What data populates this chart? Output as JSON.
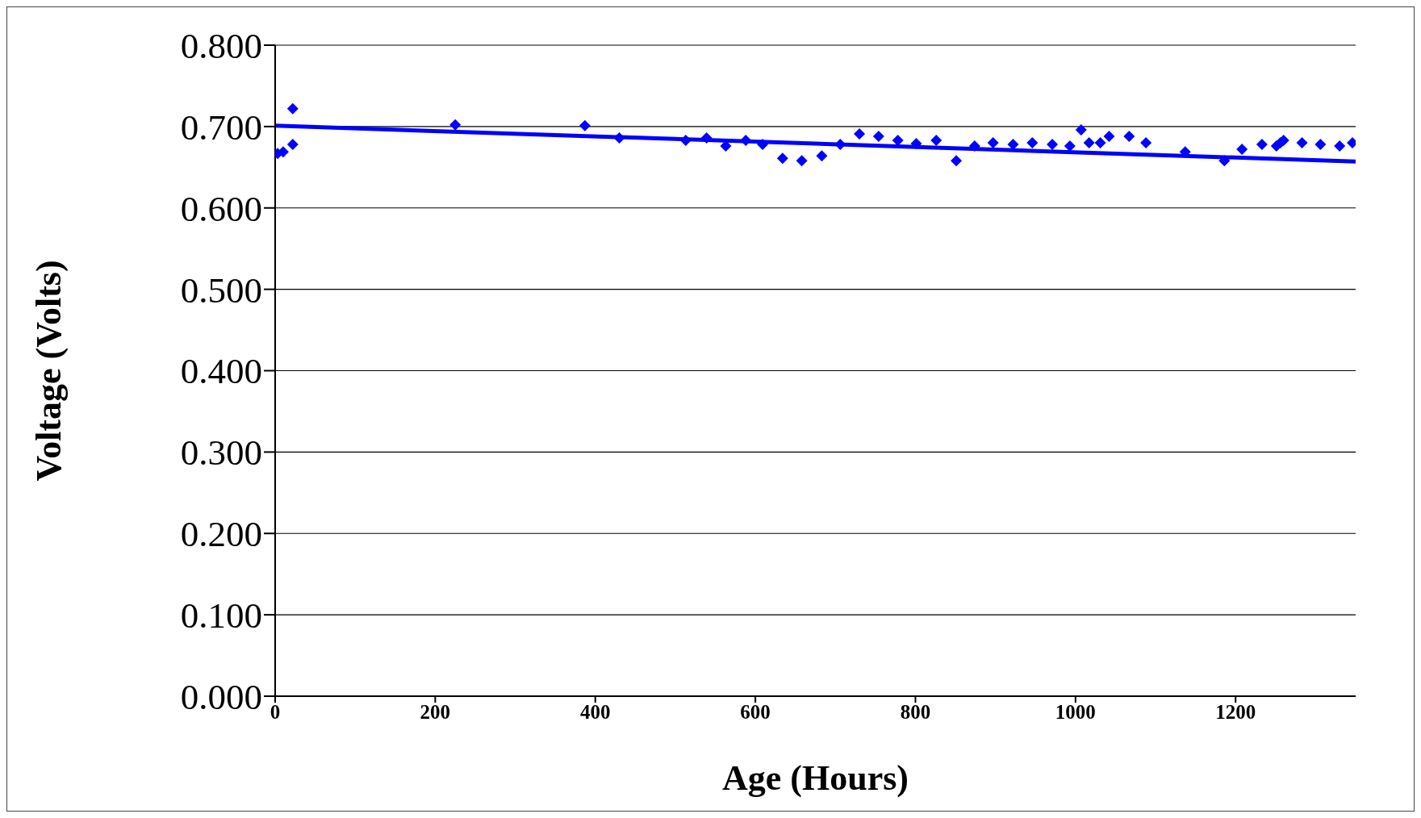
{
  "chart_data": {
    "type": "scatter",
    "xlabel": "Age (Hours)",
    "ylabel": "Voltage (Volts)",
    "xlim": [
      0,
      1350
    ],
    "xticks": [
      0,
      200,
      400,
      600,
      800,
      1000,
      1200
    ],
    "ylim": [
      0,
      0.8
    ],
    "yticks": [
      {
        "value": 0,
        "label": "0.000"
      },
      {
        "value": 0.1,
        "label": "0.100"
      },
      {
        "value": 0.2,
        "label": "0.200"
      },
      {
        "value": 0.3,
        "label": "0.300"
      },
      {
        "value": 0.4,
        "label": "0.400"
      },
      {
        "value": 0.5,
        "label": "0.500"
      },
      {
        "value": 0.6,
        "label": "0.600"
      },
      {
        "value": 0.7,
        "label": "0.700"
      },
      {
        "value": 0.8,
        "label": "0.800"
      }
    ],
    "grid": "y",
    "legend": false,
    "series": [
      {
        "type": "scatter",
        "color": "#0000ff",
        "marker": "diamond",
        "x": [
          3,
          10,
          22,
          22,
          225,
          387,
          430,
          513,
          539,
          563,
          588,
          609,
          634,
          658,
          683,
          706,
          730,
          754,
          778,
          801,
          826,
          851,
          874,
          897,
          922,
          946,
          971,
          993,
          1007,
          1017,
          1031,
          1042,
          1067,
          1088,
          1137,
          1186,
          1208,
          1233,
          1251,
          1256,
          1260,
          1283,
          1306,
          1330,
          1346
        ],
        "values": [
          0.667,
          0.669,
          0.722,
          0.678,
          0.702,
          0.701,
          0.686,
          0.683,
          0.686,
          0.676,
          0.683,
          0.678,
          0.661,
          0.658,
          0.664,
          0.678,
          0.691,
          0.688,
          0.683,
          0.679,
          0.683,
          0.658,
          0.676,
          0.68,
          0.678,
          0.68,
          0.678,
          0.676,
          0.696,
          0.68,
          0.68,
          0.688,
          0.688,
          0.68,
          0.669,
          0.658,
          0.672,
          0.678,
          0.676,
          0.68,
          0.683,
          0.68,
          0.678,
          0.676,
          0.68
        ]
      },
      {
        "type": "line",
        "color": "#0000ff",
        "marker": "none",
        "line_style": "solid",
        "x": [
          0,
          1350
        ],
        "values": [
          0.701,
          0.657
        ]
      }
    ]
  }
}
